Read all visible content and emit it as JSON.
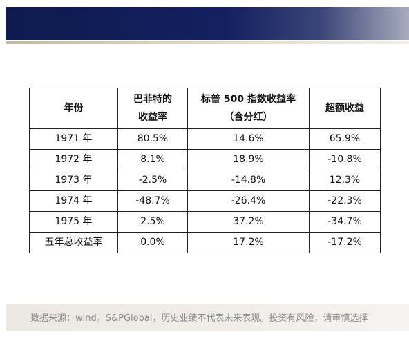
{
  "table": {
    "headers": [
      {
        "lines": [
          "年份"
        ]
      },
      {
        "lines": [
          "巴菲特的",
          "收益率"
        ]
      },
      {
        "lines": [
          "标普 500 指数收益率",
          "（含分红）"
        ]
      },
      {
        "lines": [
          "超额收益"
        ]
      }
    ],
    "rows": [
      {
        "year": "1971 年",
        "buffett": "80.5%",
        "sp500": "14.6%",
        "excess": "65.9%"
      },
      {
        "year": "1972 年",
        "buffett": "8.1%",
        "sp500": "18.9%",
        "excess": "-10.8%"
      },
      {
        "year": "1973 年",
        "buffett": "-2.5%",
        "sp500": "-14.8%",
        "excess": "12.3%"
      },
      {
        "year": "1974 年",
        "buffett": "-48.7%",
        "sp500": "-26.4%",
        "excess": "-22.3%"
      },
      {
        "year": "1975 年",
        "buffett": "2.5%",
        "sp500": "37.2%",
        "excess": "-34.7%"
      },
      {
        "year": "五年总收益率",
        "buffett": "0.0%",
        "sp500": "17.2%",
        "excess": "-17.2%"
      }
    ]
  },
  "footer": {
    "source": "数据来源：wind，S&PGlobal，历史业绩不代表未来表现。投资有风险，请审慎选择"
  },
  "colors": {
    "header_band": "#0d1b4f",
    "accent_line": "#c9b89f",
    "footer_band": "#ece8e4",
    "source_text": "#8a8a8a"
  }
}
